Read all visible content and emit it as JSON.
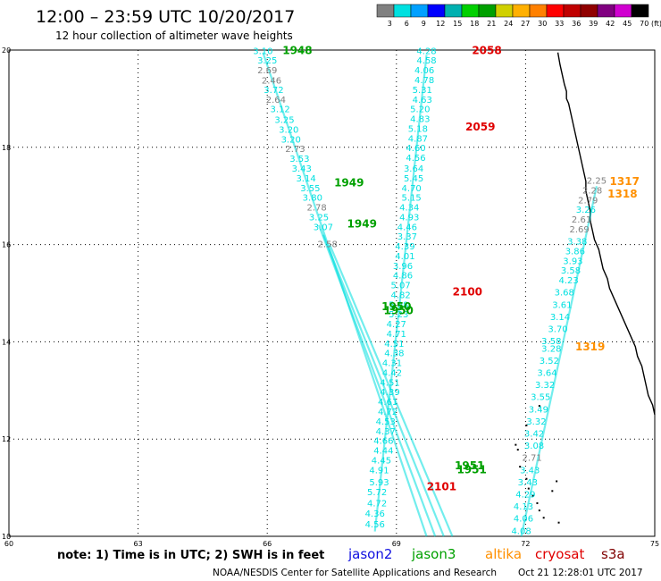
{
  "header": {
    "title": "12:00 – 23:59 UTC 10/20/2017",
    "subtitle": "12 hour collection of altimeter wave heights"
  },
  "colorbar": {
    "unit": "(ft)",
    "ticks": [
      "3",
      "6",
      "9",
      "12",
      "15",
      "18",
      "21",
      "24",
      "27",
      "30",
      "33",
      "36",
      "39",
      "42",
      "45",
      "70"
    ],
    "colors": [
      "#808080",
      "#00e0e0",
      "#00a0ff",
      "#0000ff",
      "#00b0b0",
      "#00d000",
      "#00a000",
      "#d0d000",
      "#ffb000",
      "#ff8000",
      "#ff0000",
      "#c00000",
      "#900000",
      "#800080",
      "#d000d0",
      "#000000"
    ]
  },
  "footer": {
    "note": "note: 1) Time is in UTC; 2) SWH is in feet",
    "credit": "NOAA/NESDIS Center for Satellite Applications and Research",
    "timestamp": "Oct 21 12:28:01 UTC 2017"
  },
  "legend": [
    {
      "name": "jason2",
      "color": "#1010e0"
    },
    {
      "name": "jason3",
      "color": "#00a000"
    },
    {
      "name": "altika",
      "color": "#ff9000"
    },
    {
      "name": "cryosat",
      "color": "#e00000"
    },
    {
      "name": "s3a",
      "color": "#800000"
    }
  ],
  "chart_data": {
    "type": "scatter",
    "xlim": [
      60,
      75
    ],
    "ylim": [
      10,
      20
    ],
    "x_ticks": [
      "60",
      "63",
      "66",
      "69",
      "72",
      "75"
    ],
    "y_ticks": [
      "10",
      "12",
      "14",
      "16",
      "18",
      "20"
    ],
    "grid": true,
    "grid_style": "dotted",
    "swh_labels": [
      {
        "x": 65.9,
        "y": 19.92,
        "v": "3.10",
        "c": "#00e0e0"
      },
      {
        "x": 66.0,
        "y": 19.72,
        "v": "3.25",
        "c": "#00e0e0"
      },
      {
        "x": 66.0,
        "y": 19.52,
        "v": "2.69",
        "c": "#808080"
      },
      {
        "x": 66.1,
        "y": 19.31,
        "v": "2.46",
        "c": "#808080"
      },
      {
        "x": 66.15,
        "y": 19.12,
        "v": "3.72",
        "c": "#00e0e0"
      },
      {
        "x": 66.2,
        "y": 18.92,
        "v": "2.64",
        "c": "#808080"
      },
      {
        "x": 66.3,
        "y": 18.72,
        "v": "3.12",
        "c": "#00e0e0"
      },
      {
        "x": 66.4,
        "y": 18.5,
        "v": "3.25",
        "c": "#00e0e0"
      },
      {
        "x": 66.5,
        "y": 18.3,
        "v": "3.20",
        "c": "#00e0e0"
      },
      {
        "x": 66.55,
        "y": 18.1,
        "v": "3.20",
        "c": "#00e0e0"
      },
      {
        "x": 66.65,
        "y": 17.9,
        "v": "2.73",
        "c": "#808080"
      },
      {
        "x": 66.75,
        "y": 17.7,
        "v": "3.53",
        "c": "#00e0e0"
      },
      {
        "x": 66.8,
        "y": 17.5,
        "v": "3.43",
        "c": "#00e0e0"
      },
      {
        "x": 66.9,
        "y": 17.3,
        "v": "3.14",
        "c": "#00e0e0"
      },
      {
        "x": 67.0,
        "y": 17.1,
        "v": "3.55",
        "c": "#00e0e0"
      },
      {
        "x": 67.05,
        "y": 16.9,
        "v": "3.80",
        "c": "#00e0e0"
      },
      {
        "x": 67.15,
        "y": 16.7,
        "v": "2.78",
        "c": "#808080"
      },
      {
        "x": 67.2,
        "y": 16.5,
        "v": "3.25",
        "c": "#00e0e0"
      },
      {
        "x": 67.3,
        "y": 16.3,
        "v": "3.07",
        "c": "#00e0e0"
      },
      {
        "x": 67.4,
        "y": 15.95,
        "v": "2.58",
        "c": "#808080"
      },
      {
        "x": 69.7,
        "y": 19.92,
        "v": "4.28",
        "c": "#00e0e0"
      },
      {
        "x": 69.7,
        "y": 19.72,
        "v": "4.58",
        "c": "#00e0e0"
      },
      {
        "x": 69.65,
        "y": 19.52,
        "v": "4.06",
        "c": "#00e0e0"
      },
      {
        "x": 69.65,
        "y": 19.32,
        "v": "4.78",
        "c": "#00e0e0"
      },
      {
        "x": 69.6,
        "y": 19.12,
        "v": "5.31",
        "c": "#00e0e0"
      },
      {
        "x": 69.6,
        "y": 18.92,
        "v": "4.63",
        "c": "#00e0e0"
      },
      {
        "x": 69.55,
        "y": 18.72,
        "v": "5.20",
        "c": "#00e0e0"
      },
      {
        "x": 69.55,
        "y": 18.52,
        "v": "4.83",
        "c": "#00e0e0"
      },
      {
        "x": 69.5,
        "y": 18.32,
        "v": "5.18",
        "c": "#00e0e0"
      },
      {
        "x": 69.5,
        "y": 18.12,
        "v": "4.87",
        "c": "#00e0e0"
      },
      {
        "x": 69.45,
        "y": 17.92,
        "v": "4.60",
        "c": "#00e0e0"
      },
      {
        "x": 69.45,
        "y": 17.72,
        "v": "4.56",
        "c": "#00e0e0"
      },
      {
        "x": 69.4,
        "y": 17.5,
        "v": "3.64",
        "c": "#00e0e0"
      },
      {
        "x": 69.4,
        "y": 17.3,
        "v": "5.45",
        "c": "#00e0e0"
      },
      {
        "x": 69.35,
        "y": 17.1,
        "v": "4.70",
        "c": "#00e0e0"
      },
      {
        "x": 69.35,
        "y": 16.9,
        "v": "5.15",
        "c": "#00e0e0"
      },
      {
        "x": 69.3,
        "y": 16.7,
        "v": "4.34",
        "c": "#00e0e0"
      },
      {
        "x": 69.3,
        "y": 16.5,
        "v": "4.93",
        "c": "#00e0e0"
      },
      {
        "x": 69.25,
        "y": 16.3,
        "v": "4.46",
        "c": "#00e0e0"
      },
      {
        "x": 69.25,
        "y": 16.1,
        "v": "3.37",
        "c": "#00e0e0"
      },
      {
        "x": 69.2,
        "y": 15.9,
        "v": "4.39",
        "c": "#00e0e0"
      },
      {
        "x": 69.2,
        "y": 15.7,
        "v": "4.01",
        "c": "#00e0e0"
      },
      {
        "x": 69.15,
        "y": 15.5,
        "v": "3.96",
        "c": "#00e0e0"
      },
      {
        "x": 69.15,
        "y": 15.3,
        "v": "4.86",
        "c": "#00e0e0"
      },
      {
        "x": 69.1,
        "y": 15.1,
        "v": "5.07",
        "c": "#00e0e0"
      },
      {
        "x": 69.1,
        "y": 14.9,
        "v": "4.82",
        "c": "#00e0e0"
      },
      {
        "x": 69.05,
        "y": 14.7,
        "v": "5.08",
        "c": "#00e0e0"
      },
      {
        "x": 69.05,
        "y": 14.5,
        "v": "5.23",
        "c": "#00e0e0"
      },
      {
        "x": 69.0,
        "y": 14.3,
        "v": "4.27",
        "c": "#00e0e0"
      },
      {
        "x": 69.0,
        "y": 14.1,
        "v": "4.71",
        "c": "#00e0e0"
      },
      {
        "x": 68.95,
        "y": 13.9,
        "v": "4.51",
        "c": "#00e0e0"
      },
      {
        "x": 68.95,
        "y": 13.7,
        "v": "4.38",
        "c": "#00e0e0"
      },
      {
        "x": 68.9,
        "y": 13.5,
        "v": "4.31",
        "c": "#00e0e0"
      },
      {
        "x": 68.9,
        "y": 13.3,
        "v": "4.42",
        "c": "#00e0e0"
      },
      {
        "x": 68.85,
        "y": 13.1,
        "v": "4.51",
        "c": "#00e0e0"
      },
      {
        "x": 68.85,
        "y": 12.9,
        "v": "4.39",
        "c": "#00e0e0"
      },
      {
        "x": 68.8,
        "y": 12.7,
        "v": "4.61",
        "c": "#00e0e0"
      },
      {
        "x": 68.8,
        "y": 12.5,
        "v": "4.72",
        "c": "#00e0e0"
      },
      {
        "x": 68.75,
        "y": 12.3,
        "v": "4.53",
        "c": "#00e0e0"
      },
      {
        "x": 68.75,
        "y": 12.1,
        "v": "4.37",
        "c": "#00e0e0"
      },
      {
        "x": 68.7,
        "y": 11.9,
        "v": "4.66",
        "c": "#00e0e0"
      },
      {
        "x": 68.7,
        "y": 11.7,
        "v": "4.44",
        "c": "#00e0e0"
      },
      {
        "x": 68.65,
        "y": 11.5,
        "v": "4.45",
        "c": "#00e0e0"
      },
      {
        "x": 68.6,
        "y": 11.3,
        "v": "4.91",
        "c": "#00e0e0"
      },
      {
        "x": 68.6,
        "y": 11.05,
        "v": "5.93",
        "c": "#00e0e0"
      },
      {
        "x": 68.55,
        "y": 10.85,
        "v": "5.72",
        "c": "#00e0e0"
      },
      {
        "x": 68.55,
        "y": 10.62,
        "v": "4.72",
        "c": "#00e0e0"
      },
      {
        "x": 68.5,
        "y": 10.4,
        "v": "4.36",
        "c": "#00e0e0"
      },
      {
        "x": 68.5,
        "y": 10.18,
        "v": "4.56",
        "c": "#00e0e0"
      },
      {
        "x": 73.65,
        "y": 17.25,
        "v": "2.25",
        "c": "#808080"
      },
      {
        "x": 73.55,
        "y": 17.05,
        "v": "2.28",
        "c": "#808080"
      },
      {
        "x": 73.45,
        "y": 16.85,
        "v": "2.79",
        "c": "#808080"
      },
      {
        "x": 73.4,
        "y": 16.65,
        "v": "3.26",
        "c": "#00e0e0"
      },
      {
        "x": 73.3,
        "y": 16.45,
        "v": "2.61",
        "c": "#808080"
      },
      {
        "x": 73.25,
        "y": 16.25,
        "v": "2.69",
        "c": "#808080"
      },
      {
        "x": 73.2,
        "y": 16.0,
        "v": "3.38",
        "c": "#00e0e0"
      },
      {
        "x": 73.15,
        "y": 15.8,
        "v": "3.86",
        "c": "#00e0e0"
      },
      {
        "x": 73.1,
        "y": 15.6,
        "v": "3.93",
        "c": "#00e0e0"
      },
      {
        "x": 73.05,
        "y": 15.4,
        "v": "3.58",
        "c": "#00e0e0"
      },
      {
        "x": 73.0,
        "y": 15.2,
        "v": "4.23",
        "c": "#00e0e0"
      },
      {
        "x": 72.9,
        "y": 14.95,
        "v": "3.68",
        "c": "#00e0e0"
      },
      {
        "x": 72.85,
        "y": 14.7,
        "v": "3.61",
        "c": "#00e0e0"
      },
      {
        "x": 72.8,
        "y": 14.45,
        "v": "3.14",
        "c": "#00e0e0"
      },
      {
        "x": 72.75,
        "y": 14.2,
        "v": "3.70",
        "c": "#00e0e0"
      },
      {
        "x": 72.6,
        "y": 13.95,
        "v": "3.58",
        "c": "#00e0e0"
      },
      {
        "x": 72.6,
        "y": 13.8,
        "v": "3.28",
        "c": "#00e0e0"
      },
      {
        "x": 72.55,
        "y": 13.55,
        "v": "3.52",
        "c": "#00e0e0"
      },
      {
        "x": 72.5,
        "y": 13.3,
        "v": "3.64",
        "c": "#00e0e0"
      },
      {
        "x": 72.45,
        "y": 13.05,
        "v": "3.32",
        "c": "#00e0e0"
      },
      {
        "x": 72.35,
        "y": 12.8,
        "v": "3.55",
        "c": "#00e0e0"
      },
      {
        "x": 72.3,
        "y": 12.55,
        "v": "3.49",
        "c": "#00e0e0"
      },
      {
        "x": 72.25,
        "y": 12.3,
        "v": "3.32",
        "c": "#00e0e0"
      },
      {
        "x": 72.2,
        "y": 12.05,
        "v": "3.42",
        "c": "#00e0e0"
      },
      {
        "x": 72.2,
        "y": 11.8,
        "v": "3.08",
        "c": "#00e0e0"
      },
      {
        "x": 72.15,
        "y": 11.55,
        "v": "2.71",
        "c": "#808080"
      },
      {
        "x": 72.1,
        "y": 11.3,
        "v": "3.43",
        "c": "#00e0e0"
      },
      {
        "x": 72.05,
        "y": 11.05,
        "v": "3.43",
        "c": "#00e0e0"
      },
      {
        "x": 72.0,
        "y": 10.8,
        "v": "4.29",
        "c": "#00e0e0"
      },
      {
        "x": 71.95,
        "y": 10.55,
        "v": "4.13",
        "c": "#00e0e0"
      },
      {
        "x": 71.95,
        "y": 10.3,
        "v": "4.06",
        "c": "#00e0e0"
      },
      {
        "x": 71.9,
        "y": 10.05,
        "v": "4.08",
        "c": "#00e0e0"
      }
    ],
    "time_labels": [
      {
        "x": 66.7,
        "y": 19.92,
        "v": "1948",
        "c": "#00a000"
      },
      {
        "x": 67.9,
        "y": 17.2,
        "v": "1949",
        "c": "#00a000"
      },
      {
        "x": 68.2,
        "y": 16.35,
        "v": "1949",
        "c": "#00a000"
      },
      {
        "x": 69.0,
        "y": 14.65,
        "v": "1950",
        "c": "#00a000"
      },
      {
        "x": 69.05,
        "y": 14.57,
        "v": "1950",
        "c": "#00a000"
      },
      {
        "x": 70.7,
        "y": 11.38,
        "v": "1951",
        "c": "#00a000"
      },
      {
        "x": 70.75,
        "y": 11.3,
        "v": "1951",
        "c": "#00a000"
      },
      {
        "x": 71.1,
        "y": 19.92,
        "v": "2058",
        "c": "#e00000"
      },
      {
        "x": 70.95,
        "y": 18.35,
        "v": "2059",
        "c": "#e00000"
      },
      {
        "x": 70.65,
        "y": 14.95,
        "v": "2100",
        "c": "#e00000"
      },
      {
        "x": 70.05,
        "y": 10.95,
        "v": "2101",
        "c": "#e00000"
      },
      {
        "x": 74.3,
        "y": 17.22,
        "v": "1317",
        "c": "#ff9000"
      },
      {
        "x": 74.25,
        "y": 16.97,
        "v": "1318",
        "c": "#ff9000"
      },
      {
        "x": 73.5,
        "y": 13.82,
        "v": "1319",
        "c": "#ff9000"
      }
    ],
    "tracks": [
      {
        "x1": 65.9,
        "y1": 19.95,
        "x2": 69.7,
        "y2": 10.0,
        "c": "#00e0e0"
      },
      {
        "x1": 67.2,
        "y1": 16.4,
        "x2": 69.9,
        "y2": 10.0,
        "c": "#00e0e0"
      },
      {
        "x1": 67.3,
        "y1": 16.2,
        "x2": 70.1,
        "y2": 10.0,
        "c": "#00e0e0"
      },
      {
        "x1": 67.45,
        "y1": 16.0,
        "x2": 70.3,
        "y2": 10.0,
        "c": "#00e0e0"
      },
      {
        "x1": 69.7,
        "y1": 19.9,
        "x2": 68.5,
        "y2": 10.1,
        "c": "#00e0e0"
      },
      {
        "x1": 73.65,
        "y1": 17.2,
        "x2": 71.9,
        "y2": 10.0,
        "c": "#00e0e0"
      }
    ],
    "coastline": [
      [
        72.75,
        19.95
      ],
      [
        72.8,
        19.7
      ],
      [
        72.85,
        19.5
      ],
      [
        72.9,
        19.3
      ],
      [
        72.95,
        19.15
      ],
      [
        72.95,
        19.0
      ],
      [
        73.0,
        18.9
      ],
      [
        73.05,
        18.7
      ],
      [
        73.1,
        18.5
      ],
      [
        73.15,
        18.3
      ],
      [
        73.2,
        18.1
      ],
      [
        73.25,
        17.9
      ],
      [
        73.3,
        17.7
      ],
      [
        73.35,
        17.5
      ],
      [
        73.4,
        17.3
      ],
      [
        73.4,
        17.1
      ],
      [
        73.45,
        16.9
      ],
      [
        73.5,
        16.7
      ],
      [
        73.5,
        16.5
      ],
      [
        73.55,
        16.3
      ],
      [
        73.6,
        16.1
      ],
      [
        73.7,
        15.9
      ],
      [
        73.75,
        15.7
      ],
      [
        73.8,
        15.5
      ],
      [
        73.9,
        15.3
      ],
      [
        73.95,
        15.1
      ],
      [
        74.05,
        14.9
      ],
      [
        74.15,
        14.7
      ],
      [
        74.25,
        14.5
      ],
      [
        74.35,
        14.3
      ],
      [
        74.45,
        14.1
      ],
      [
        74.55,
        13.9
      ],
      [
        74.6,
        13.7
      ],
      [
        74.7,
        13.5
      ],
      [
        74.75,
        13.3
      ],
      [
        74.8,
        13.1
      ],
      [
        74.85,
        12.9
      ],
      [
        74.95,
        12.7
      ],
      [
        75.0,
        12.5
      ]
    ],
    "islands": [
      [
        71.75,
        11.9
      ],
      [
        71.8,
        11.8
      ],
      [
        71.85,
        11.45
      ],
      [
        72.0,
        11.2
      ],
      [
        72.05,
        11.0
      ],
      [
        72.15,
        10.85
      ],
      [
        72.25,
        10.7
      ],
      [
        72.3,
        10.55
      ],
      [
        72.4,
        10.4
      ],
      [
        72.6,
        10.95
      ],
      [
        72.7,
        11.15
      ],
      [
        72.75,
        10.3
      ],
      [
        72.3,
        12.7
      ],
      [
        72.0,
        12.3
      ]
    ]
  }
}
